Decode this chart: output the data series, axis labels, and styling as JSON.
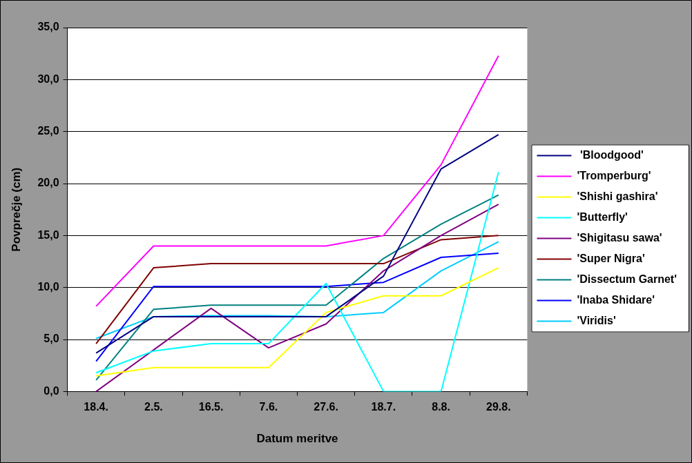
{
  "chart_data": {
    "type": "line",
    "xlabel": "Datum meritve",
    "ylabel": "Povprečje (cm)",
    "categories": [
      "18.4.",
      "2.5.",
      "16.5.",
      "7.6.",
      "27.6.",
      "18.7.",
      "8.8.",
      "29.8."
    ],
    "ylim": [
      0,
      35
    ],
    "yticks": [
      {
        "value": 0,
        "label": "0,0"
      },
      {
        "value": 5,
        "label": "5,0"
      },
      {
        "value": 10,
        "label": "10,0"
      },
      {
        "value": 15,
        "label": "15,0"
      },
      {
        "value": 20,
        "label": "20,0"
      },
      {
        "value": 25,
        "label": "25,0"
      },
      {
        "value": 30,
        "label": "30,0"
      },
      {
        "value": 35,
        "label": "35,0"
      }
    ],
    "grid": "y",
    "legend": "right",
    "marker": "none",
    "line_style": "solid",
    "series": [
      {
        "name": " 'Bloodgood'",
        "color": "#000080",
        "values": [
          3.7,
          7.2,
          7.2,
          7.2,
          7.2,
          11.1,
          21.4,
          24.7
        ]
      },
      {
        "name": "'Tromperburg'",
        "color": "#ff00ff",
        "values": [
          8.2,
          14.0,
          14.0,
          14.0,
          14.0,
          15.0,
          21.8,
          32.3
        ]
      },
      {
        "name": "'Shishi gashira'",
        "color": "#ffff00",
        "values": [
          1.5,
          2.3,
          2.3,
          2.3,
          7.6,
          9.2,
          9.2,
          11.9
        ]
      },
      {
        "name": "'Butterfly'",
        "color": "#00ffff",
        "values": [
          1.8,
          3.9,
          4.6,
          4.6,
          10.4,
          0,
          0,
          21.1
        ]
      },
      {
        "name": "'Shigitasu sawa'",
        "color": "#800080",
        "values": [
          0,
          4.0,
          8.0,
          4.2,
          6.5,
          11.6,
          15.0,
          18.0
        ]
      },
      {
        "name": "'Super Nigra'",
        "color": "#800000",
        "values": [
          4.6,
          11.9,
          12.3,
          12.3,
          12.3,
          12.3,
          14.6,
          15.0
        ]
      },
      {
        "name": "'Dissectum Garnet'",
        "color": "#008080",
        "values": [
          1.1,
          7.9,
          8.3,
          8.3,
          8.3,
          12.8,
          16.1,
          18.9
        ]
      },
      {
        "name": "'Inaba Shidare'",
        "color": "#0000ff",
        "values": [
          2.9,
          10.1,
          10.1,
          10.1,
          10.1,
          10.5,
          12.9,
          13.3
        ]
      },
      {
        "name": "'Viridis'",
        "color": "#00ccff",
        "values": [
          5.1,
          7.2,
          7.3,
          7.3,
          7.2,
          7.6,
          11.6,
          14.4
        ]
      }
    ]
  }
}
